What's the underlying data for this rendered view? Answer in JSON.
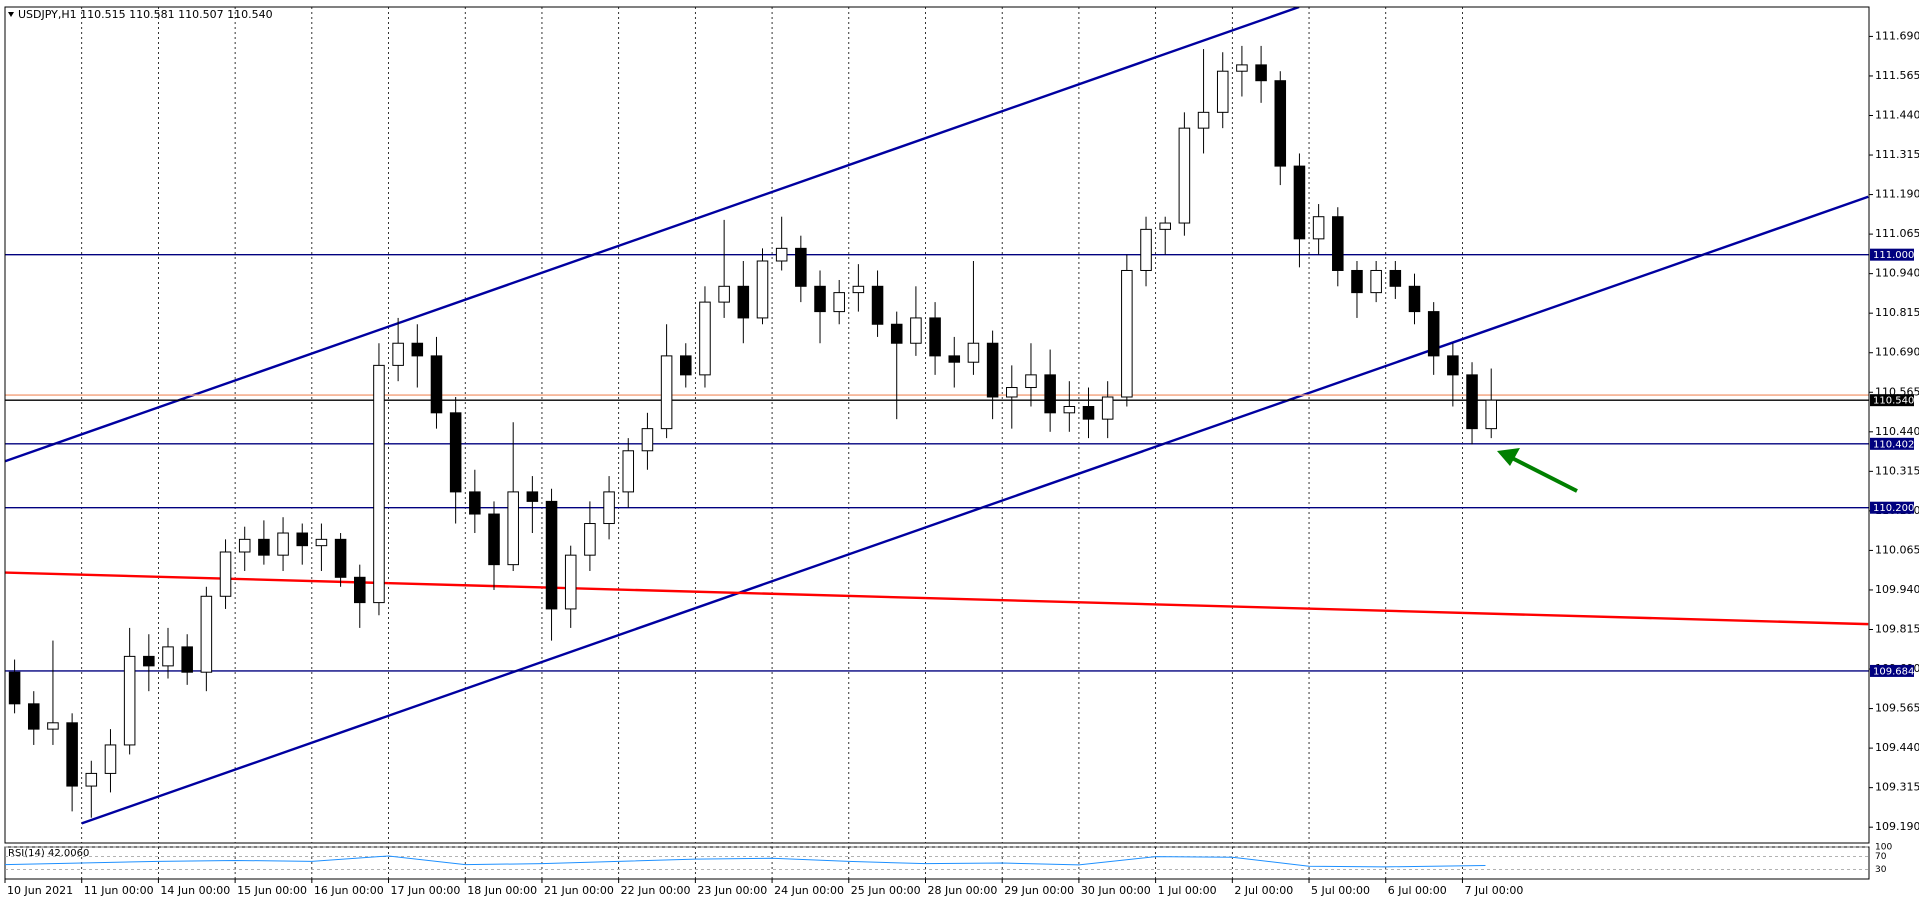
{
  "chart_data": {
    "type": "candlestick",
    "title": "USDJPY,H1  110.515 110.581 110.507 110.540",
    "x": [
      0.125,
      0.375,
      0.625,
      0.875,
      1.125,
      1.375,
      1.625,
      1.875,
      2.125,
      2.375,
      2.625,
      2.875,
      3.125,
      3.375,
      3.625,
      3.875,
      4.125,
      4.375,
      4.625,
      4.875,
      5.125,
      5.375,
      5.625,
      5.875,
      6.125,
      6.375,
      6.625,
      6.875,
      7.125,
      7.375,
      7.625,
      7.875,
      8.125,
      8.375,
      8.625,
      8.875,
      9.125,
      9.375,
      9.625,
      9.875,
      10.125,
      10.375,
      10.625,
      10.875,
      11.125,
      11.375,
      11.625,
      11.875,
      12.125,
      12.375,
      12.625,
      12.875,
      13.125,
      13.375,
      13.625,
      13.875,
      14.125,
      14.375,
      14.625,
      14.875,
      15.125,
      15.375,
      15.625,
      15.875,
      16.125,
      16.375,
      16.625,
      16.875,
      17.125,
      17.375,
      17.625,
      17.875,
      18.125,
      18.375,
      18.625,
      18.875,
      19.125,
      19.375
    ],
    "open": [
      109.68,
      109.58,
      109.5,
      109.52,
      109.32,
      109.36,
      109.45,
      109.73,
      109.7,
      109.76,
      109.68,
      109.92,
      110.06,
      110.1,
      110.05,
      110.12,
      110.08,
      110.1,
      109.98,
      109.9,
      110.65,
      110.72,
      110.68,
      110.5,
      110.25,
      110.18,
      110.02,
      110.25,
      110.22,
      109.88,
      110.05,
      110.15,
      110.25,
      110.38,
      110.45,
      110.68,
      110.62,
      110.85,
      110.9,
      110.8,
      110.98,
      111.02,
      110.9,
      110.82,
      110.88,
      110.9,
      110.78,
      110.72,
      110.8,
      110.68,
      110.66,
      110.72,
      110.55,
      110.58,
      110.62,
      110.5,
      110.52,
      110.48,
      110.55,
      110.95,
      111.08,
      111.1,
      111.4,
      111.45,
      111.58,
      111.6,
      111.55,
      111.28,
      111.05,
      111.12,
      110.95,
      110.88,
      110.95,
      110.9,
      110.82,
      110.68,
      110.62,
      110.45
    ],
    "high": [
      109.72,
      109.62,
      109.78,
      109.55,
      109.4,
      109.5,
      109.82,
      109.8,
      109.82,
      109.8,
      109.95,
      110.1,
      110.14,
      110.16,
      110.17,
      110.15,
      110.15,
      110.12,
      110.02,
      110.72,
      110.8,
      110.78,
      110.74,
      110.55,
      110.32,
      110.22,
      110.47,
      110.3,
      110.26,
      110.08,
      110.22,
      110.3,
      110.42,
      110.5,
      110.78,
      110.72,
      110.9,
      111.11,
      110.98,
      111.02,
      111.12,
      111.06,
      110.95,
      110.92,
      110.97,
      110.95,
      110.82,
      110.9,
      110.85,
      110.74,
      110.98,
      110.76,
      110.65,
      110.72,
      110.7,
      110.6,
      110.58,
      110.6,
      111.0,
      111.12,
      111.12,
      111.45,
      111.65,
      111.64,
      111.66,
      111.66,
      111.58,
      111.32,
      111.16,
      111.15,
      110.98,
      110.98,
      110.98,
      110.94,
      110.85,
      110.72,
      110.66,
      110.64
    ],
    "low": [
      109.55,
      109.45,
      109.45,
      109.24,
      109.22,
      109.3,
      109.42,
      109.62,
      109.66,
      109.64,
      109.62,
      109.88,
      110.0,
      110.02,
      110.0,
      110.02,
      110.0,
      109.95,
      109.82,
      109.86,
      110.6,
      110.58,
      110.45,
      110.15,
      110.12,
      109.94,
      110.0,
      110.12,
      109.78,
      109.82,
      110.0,
      110.1,
      110.2,
      110.32,
      110.42,
      110.58,
      110.58,
      110.8,
      110.72,
      110.78,
      110.95,
      110.85,
      110.72,
      110.78,
      110.82,
      110.74,
      110.48,
      110.68,
      110.62,
      110.58,
      110.62,
      110.48,
      110.45,
      110.52,
      110.44,
      110.44,
      110.42,
      110.42,
      110.52,
      110.9,
      111.0,
      111.06,
      111.32,
      111.4,
      111.5,
      111.48,
      111.22,
      110.96,
      111.0,
      110.9,
      110.8,
      110.85,
      110.86,
      110.78,
      110.62,
      110.52,
      110.4,
      110.42
    ],
    "close": [
      109.58,
      109.5,
      109.52,
      109.32,
      109.36,
      109.45,
      109.73,
      109.7,
      109.76,
      109.68,
      109.92,
      110.06,
      110.1,
      110.05,
      110.12,
      110.08,
      110.1,
      109.98,
      109.9,
      110.65,
      110.72,
      110.68,
      110.5,
      110.25,
      110.18,
      110.02,
      110.25,
      110.22,
      109.88,
      110.05,
      110.15,
      110.25,
      110.38,
      110.45,
      110.68,
      110.62,
      110.85,
      110.9,
      110.8,
      110.98,
      111.02,
      110.9,
      110.82,
      110.88,
      110.9,
      110.78,
      110.72,
      110.8,
      110.68,
      110.66,
      110.72,
      110.55,
      110.58,
      110.62,
      110.5,
      110.52,
      110.48,
      110.55,
      110.95,
      111.08,
      111.1,
      111.4,
      111.45,
      111.58,
      111.6,
      111.55,
      111.28,
      111.05,
      111.12,
      110.95,
      110.88,
      110.95,
      110.9,
      110.82,
      110.68,
      110.62,
      110.45,
      110.54
    ],
    "up_color": "#ffffff",
    "down_color": "#000000",
    "xlim": [
      0,
      24.3
    ],
    "ylim": [
      109.14,
      111.783
    ],
    "xticks": [
      {
        "value": 0,
        "label": "10 Jun 2021"
      },
      {
        "value": 1,
        "label": "11 Jun 00:00"
      },
      {
        "value": 2,
        "label": "14 Jun 00:00"
      },
      {
        "value": 3,
        "label": "15 Jun 00:00"
      },
      {
        "value": 4,
        "label": "16 Jun 00:00"
      },
      {
        "value": 5,
        "label": "17 Jun 00:00"
      },
      {
        "value": 6,
        "label": "18 Jun 00:00"
      },
      {
        "value": 7,
        "label": "21 Jun 00:00"
      },
      {
        "value": 8,
        "label": "22 Jun 00:00"
      },
      {
        "value": 9,
        "label": "23 Jun 00:00"
      },
      {
        "value": 10,
        "label": "24 Jun 00:00"
      },
      {
        "value": 11,
        "label": "25 Jun 00:00"
      },
      {
        "value": 12,
        "label": "28 Jun 00:00"
      },
      {
        "value": 13,
        "label": "29 Jun 00:00"
      },
      {
        "value": 14,
        "label": "30 Jun 00:00"
      },
      {
        "value": 15,
        "label": "1 Jul 00:00"
      },
      {
        "value": 16,
        "label": "2 Jul 00:00"
      },
      {
        "value": 17,
        "label": "5 Jul 00:00"
      },
      {
        "value": 18,
        "label": "6 Jul 00:00"
      },
      {
        "value": 19,
        "label": "7 Jul 00:00"
      }
    ],
    "yticks": [
      {
        "value": 109.19,
        "label": "109.190"
      },
      {
        "value": 109.315,
        "label": "109.315"
      },
      {
        "value": 109.44,
        "label": "109.440"
      },
      {
        "value": 109.565,
        "label": "109.565"
      },
      {
        "value": 109.69,
        "label": "109.690"
      },
      {
        "value": 109.815,
        "label": "109.815"
      },
      {
        "value": 109.94,
        "label": "109.940"
      },
      {
        "value": 110.065,
        "label": "110.065"
      },
      {
        "value": 110.19,
        "label": "110.190"
      },
      {
        "value": 110.315,
        "label": "110.315"
      },
      {
        "value": 110.44,
        "label": "110.440"
      },
      {
        "value": 110.565,
        "label": "110.565"
      },
      {
        "value": 110.69,
        "label": "110.690"
      },
      {
        "value": 110.815,
        "label": "110.815"
      },
      {
        "value": 110.94,
        "label": "110.940"
      },
      {
        "value": 111.065,
        "label": "111.065"
      },
      {
        "value": 111.19,
        "label": "111.190"
      },
      {
        "value": 111.315,
        "label": "111.315"
      },
      {
        "value": 111.44,
        "label": "111.440"
      },
      {
        "value": 111.565,
        "label": "111.565"
      },
      {
        "value": 111.69,
        "label": "111.690"
      }
    ],
    "grid": "x",
    "hlines": [
      {
        "value": 111.0,
        "label": "111.000",
        "color": "#00007f"
      },
      {
        "value": 110.402,
        "label": "110.402",
        "color": "#00007f"
      },
      {
        "value": 110.2,
        "label": "110.200",
        "color": "#00007f"
      },
      {
        "value": 109.684,
        "label": "109.684",
        "color": "#00007f"
      },
      {
        "value": 110.556,
        "color": "#f4a07a"
      },
      {
        "value": 110.54,
        "label": "110.540",
        "color": "#000000"
      }
    ],
    "trendlines": [
      {
        "x": [
          0,
          16.87
        ],
        "y": [
          110.347,
          111.783
        ],
        "color": "#0000a0"
      },
      {
        "x": [
          1,
          24.29
        ],
        "y": [
          109.202,
          111.183
        ],
        "color": "#0000a0"
      },
      {
        "x": [
          0,
          24.29
        ],
        "y": [
          109.995,
          109.832
        ],
        "color": "#ff0000"
      }
    ],
    "indicator": {
      "name": "RSI(14) 42.0060",
      "x": [
        0,
        1,
        2,
        3,
        4,
        5,
        6,
        7,
        8,
        9,
        10,
        11,
        12,
        13,
        14,
        15,
        16,
        17,
        18,
        19.3
      ],
      "values": [
        45,
        50,
        55,
        58,
        55,
        72,
        45,
        48,
        55,
        62,
        65,
        55,
        48,
        50,
        44,
        70,
        68,
        40,
        38,
        42.006
      ],
      "color": "#1e90ff",
      "ylim": [
        0,
        100
      ],
      "yticks": [
        30,
        70,
        100
      ]
    }
  }
}
